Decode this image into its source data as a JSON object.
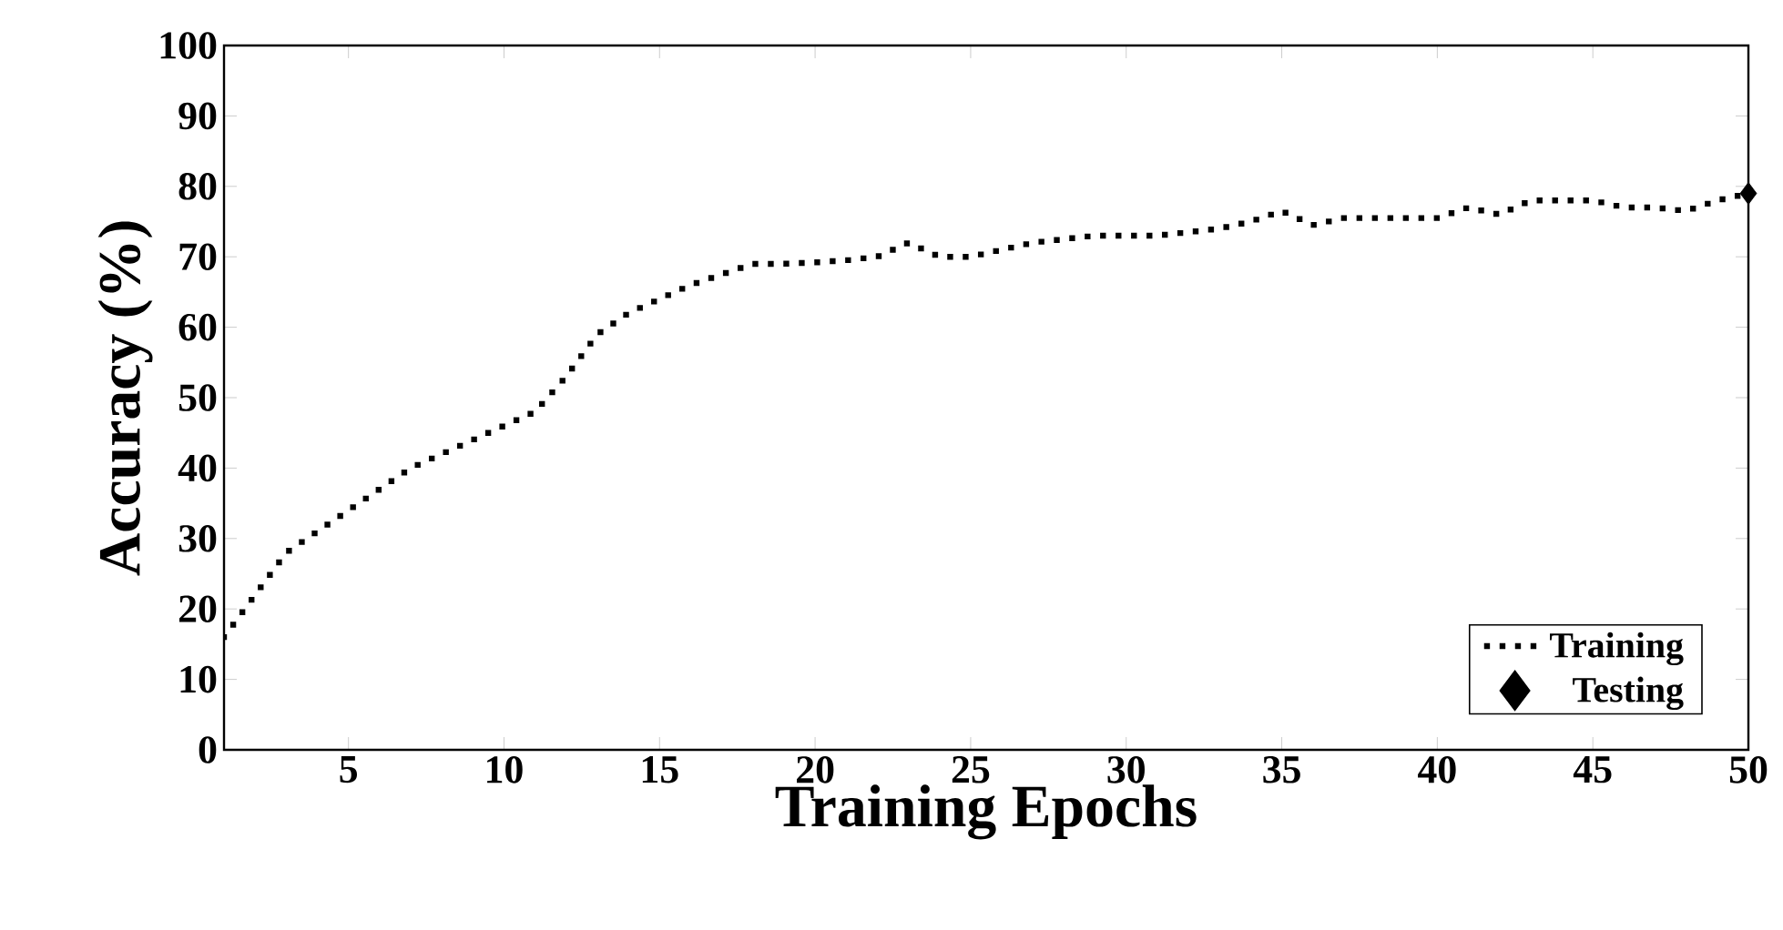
{
  "chart_data": {
    "type": "line",
    "xlabel": "Training Epochs",
    "ylabel": "Accuracy (%)",
    "xlim": [
      1,
      50
    ],
    "xticks": [
      5,
      10,
      15,
      20,
      25,
      30,
      35,
      40,
      45,
      50
    ],
    "ylim": [
      0,
      100
    ],
    "yticks": [
      0,
      10,
      20,
      30,
      40,
      50,
      60,
      70,
      80,
      90,
      100
    ],
    "grid": false,
    "legend": "bottom right",
    "series": [
      {
        "name": "Training",
        "color": "#000000",
        "line_style": "dotted",
        "marker": "none",
        "x": [
          1,
          2,
          3,
          4,
          5,
          6,
          7,
          8,
          9,
          10,
          11,
          12,
          13,
          14,
          15,
          16,
          17,
          18,
          19,
          20,
          21,
          22,
          23,
          24,
          25,
          26,
          27,
          28,
          29,
          30,
          31,
          32,
          33,
          34,
          35,
          36,
          37,
          38,
          39,
          40,
          41,
          42,
          43,
          44,
          45,
          46,
          47,
          48,
          49,
          50
        ],
        "values": [
          16,
          22,
          28,
          31,
          34,
          37,
          40,
          42,
          44,
          46,
          48,
          53,
          59,
          62,
          64,
          66,
          67.5,
          69,
          69,
          69.2,
          69.5,
          70,
          72,
          70,
          70,
          71,
          72,
          72.5,
          73,
          73,
          73,
          73.5,
          74,
          75,
          76.5,
          74.5,
          75.5,
          75.5,
          75.5,
          75.5,
          77,
          76,
          78,
          78,
          78,
          77,
          77,
          76.5,
          78,
          79
        ]
      },
      {
        "name": "Testing",
        "type": "scatter",
        "color": "#000000",
        "marker": "diamond",
        "x": [
          50
        ],
        "values": [
          79
        ]
      }
    ]
  }
}
